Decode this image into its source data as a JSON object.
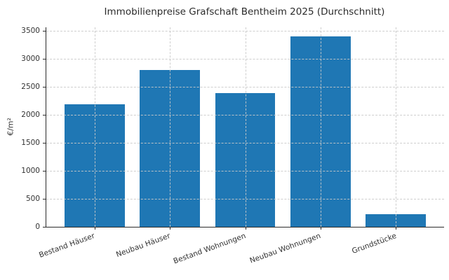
{
  "chart_data": {
    "type": "bar",
    "title": "Immobilienpreise Grafschaft Bentheim 2025 (Durchschnitt)",
    "categories": [
      "Bestand Häuser",
      "Neubau Häuser",
      "Bestand Wohnungen",
      "Neubau Wohnungen",
      "Grundstücke"
    ],
    "values": [
      2190,
      2800,
      2390,
      3400,
      225
    ],
    "xlabel": "",
    "ylabel": "€/m²",
    "ylim": [
      0,
      3500
    ],
    "yticks": [
      0,
      500,
      1000,
      1500,
      2000,
      2500,
      3000,
      3500
    ],
    "grid": "both-axes, dashed, drawn over bars",
    "legend_position": "none",
    "xtick_rotation_deg": 20
  },
  "colors": {
    "bar": "#1f77b4",
    "grid": "#c9c9c9",
    "spine": "#2b2b2b",
    "text": "#333333",
    "background": "#ffffff"
  }
}
